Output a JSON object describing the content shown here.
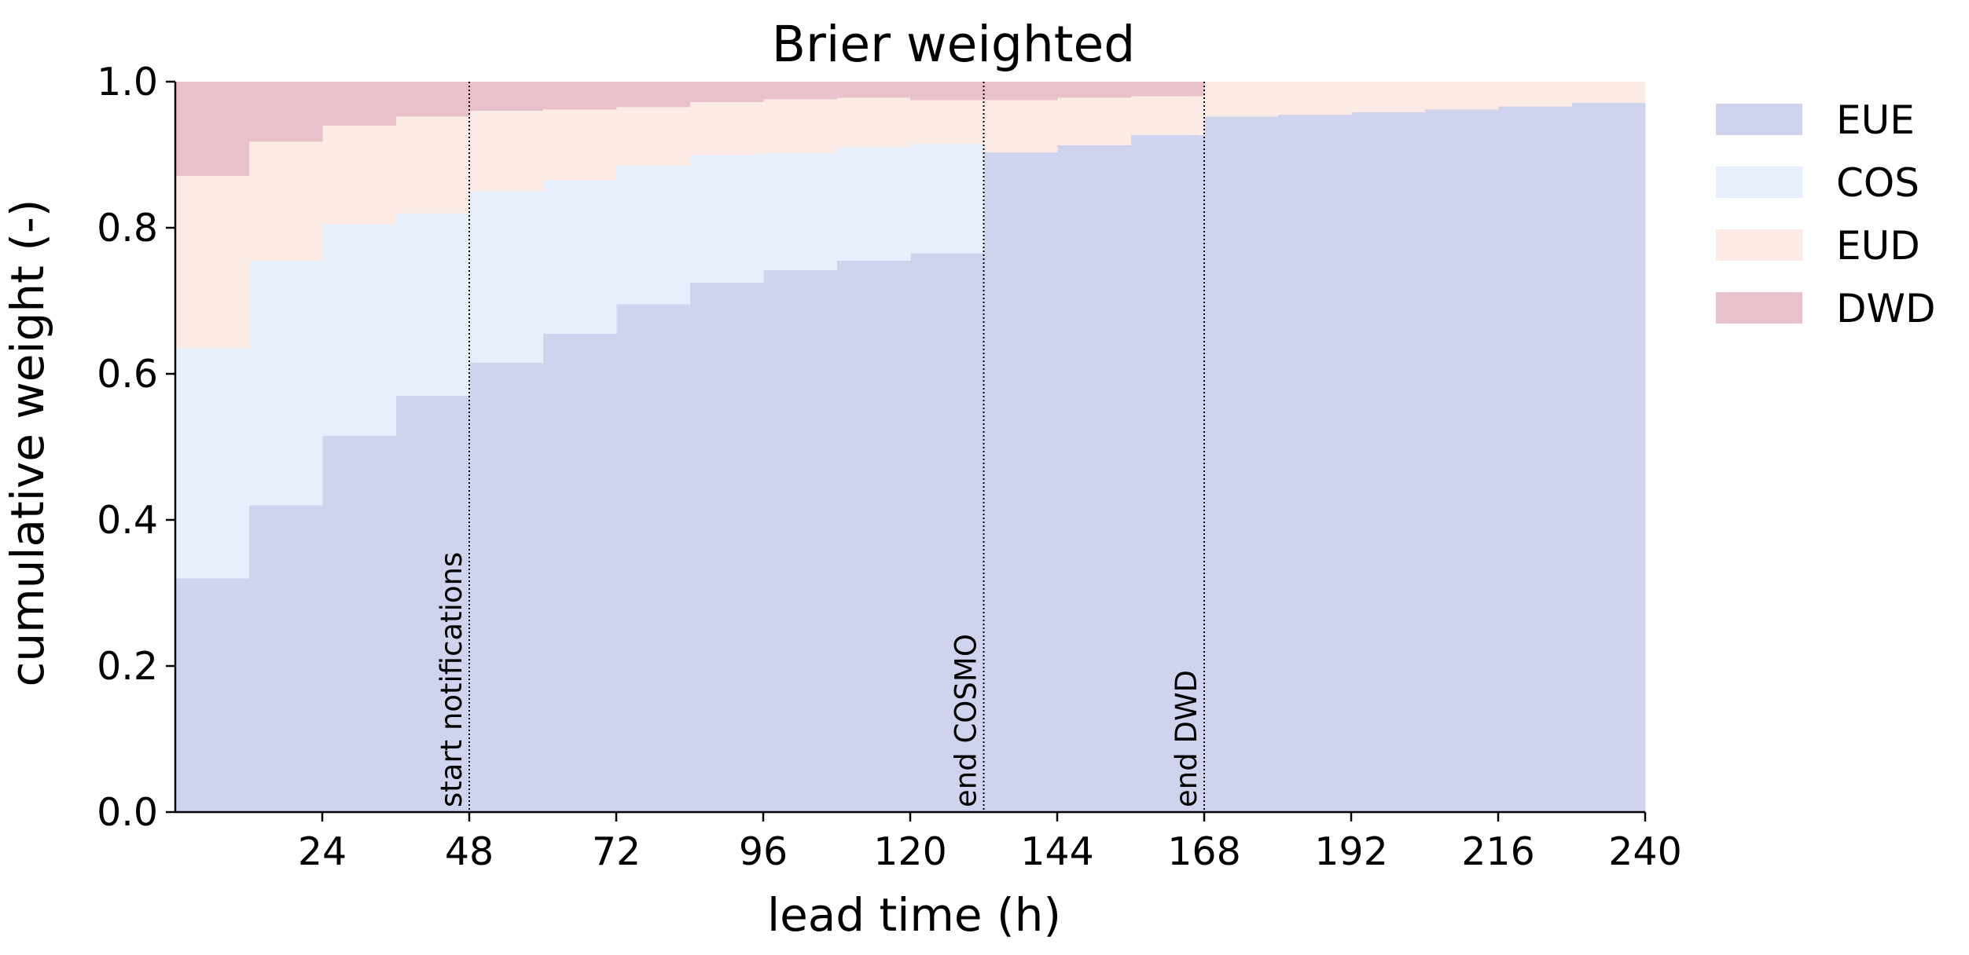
{
  "chart_data": {
    "type": "area",
    "title": "Brier weighted",
    "xlabel": "lead time (h)",
    "ylabel": "cumulative weight (-)",
    "xlim": [
      0,
      240
    ],
    "ylim": [
      0,
      1
    ],
    "xticks": [
      24,
      48,
      72,
      96,
      120,
      144,
      168,
      192,
      216,
      240
    ],
    "xtick_labels": [
      "24",
      "48",
      "72",
      "96",
      "120",
      "144",
      "168",
      "192",
      "216",
      "240"
    ],
    "yticks": [
      0,
      0.2,
      0.4,
      0.6,
      0.8,
      1.0
    ],
    "ytick_labels": [
      "0.0",
      "0.2",
      "0.4",
      "0.6",
      "0.8",
      "1.0"
    ],
    "step_edges": [
      0,
      12,
      24,
      36,
      48,
      60,
      72,
      84,
      96,
      108,
      120,
      132,
      144,
      156,
      168,
      180,
      192,
      204,
      216,
      228,
      240
    ],
    "series": [
      {
        "name": "EUE",
        "color": "#cfd3ee",
        "values": [
          0.32,
          0.42,
          0.515,
          0.57,
          0.615,
          0.655,
          0.695,
          0.725,
          0.742,
          0.755,
          0.765,
          0.903,
          0.913,
          0.927,
          0.952,
          0.955,
          0.958,
          0.962,
          0.966,
          0.971
        ]
      },
      {
        "name": "COS",
        "color": "#e8effc",
        "values": [
          0.315,
          0.335,
          0.29,
          0.25,
          0.235,
          0.21,
          0.19,
          0.175,
          0.16,
          0.155,
          0.15,
          0,
          0,
          0,
          0,
          0,
          0,
          0,
          0,
          0
        ]
      },
      {
        "name": "EUD",
        "color": "#fcebe5",
        "values": [
          0.236,
          0.163,
          0.135,
          0.132,
          0.11,
          0.097,
          0.08,
          0.072,
          0.074,
          0.068,
          0.06,
          0.072,
          0.065,
          0.053,
          0.048,
          0.045,
          0.042,
          0.038,
          0.034,
          0.029
        ]
      },
      {
        "name": "DWD",
        "color": "#e9c1ca",
        "values": [
          0.129,
          0.082,
          0.06,
          0.048,
          0.04,
          0.038,
          0.035,
          0.028,
          0.024,
          0.022,
          0.025,
          0.025,
          0.022,
          0.02,
          0,
          0,
          0,
          0,
          0,
          0
        ]
      }
    ],
    "annotations": [
      {
        "x": 48,
        "text": "start notifications"
      },
      {
        "x": 132,
        "text": "end COSMO"
      },
      {
        "x": 168,
        "text": "end DWD"
      }
    ],
    "legend_placement": "upper right, outside plot area",
    "grid": false
  }
}
